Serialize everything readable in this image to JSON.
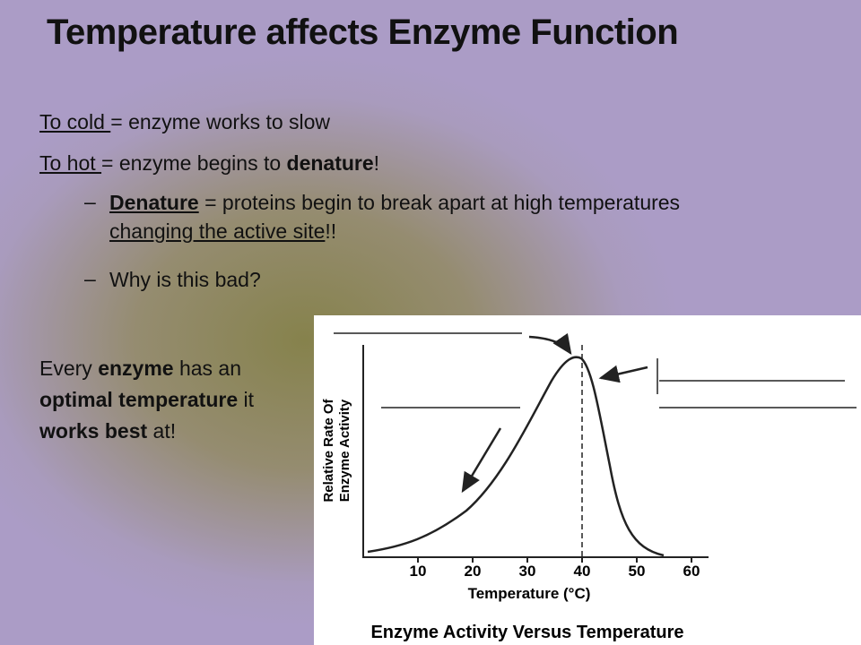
{
  "title": "Temperature affects Enzyme Function",
  "bullets": [
    [
      "To cold ",
      "= enzyme works to slow"
    ],
    [
      "To hot ",
      "= enzyme begins to ",
      "denature",
      "!"
    ],
    [
      "Denature",
      " = proteins begin to break apart at high temperatures ",
      "changing the active site",
      "!!"
    ],
    [
      "Why is this bad?"
    ]
  ],
  "side_note": [
    "Every ",
    "enzyme",
    " has an ",
    "optimal temperature",
    " it ",
    "works best",
    " at!"
  ],
  "figure": {
    "y_label": [
      "Relative Rate Of",
      "Enzyme Activity"
    ],
    "x_label": "Temperature (°C)",
    "x_ticks": [
      10,
      20,
      30,
      40,
      50,
      60
    ],
    "caption": "Enzyme Activity Versus Temperature"
  }
}
